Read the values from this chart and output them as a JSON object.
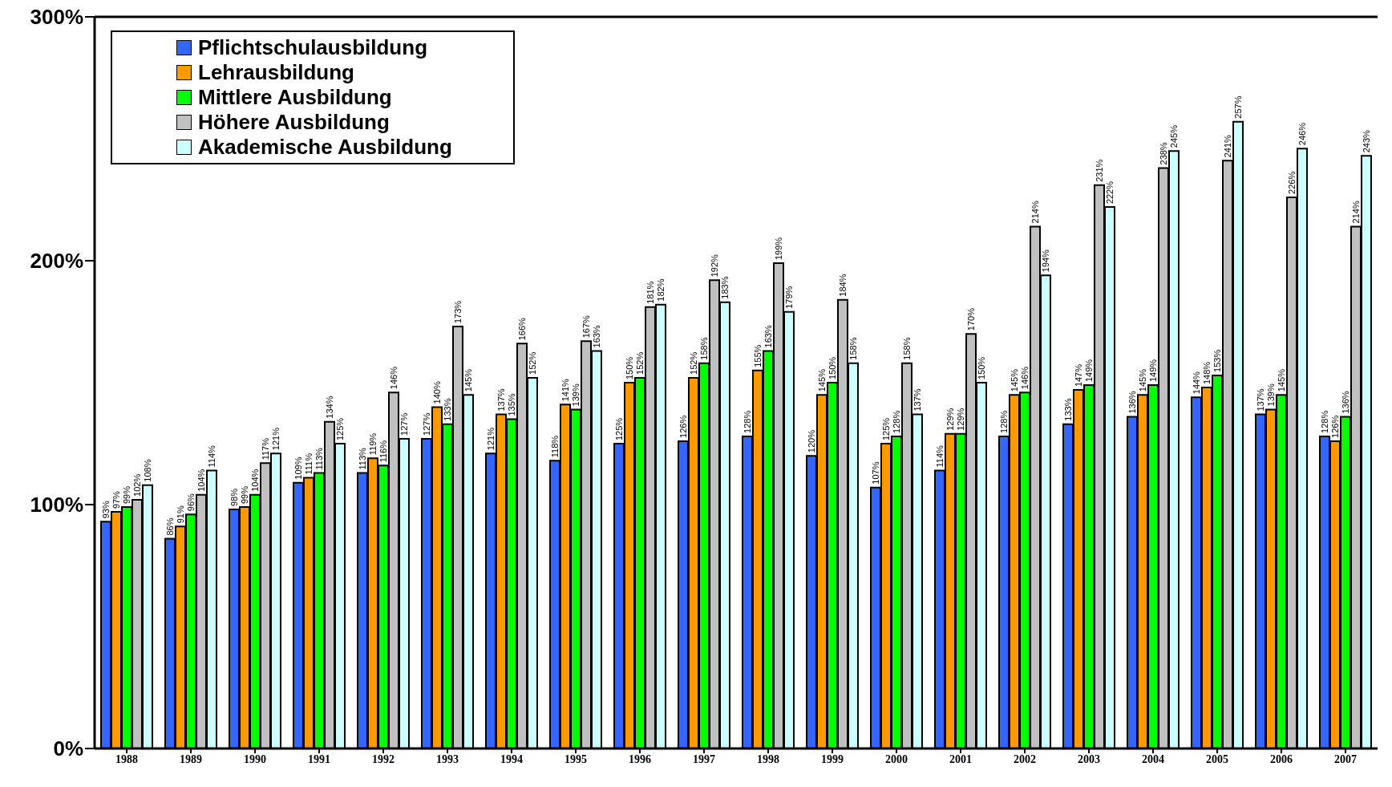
{
  "chart_data": {
    "type": "bar",
    "categories": [
      "1988",
      "1989",
      "1990",
      "1991",
      "1992",
      "1993",
      "1994",
      "1995",
      "1996",
      "1997",
      "1998",
      "1999",
      "2000",
      "2001",
      "2002",
      "2003",
      "2004",
      "2005",
      "2006",
      "2007"
    ],
    "series": [
      {
        "name": "Pflichtschulausbildung",
        "color": "#3366ff",
        "values": [
          93,
          86,
          98,
          109,
          113,
          127,
          121,
          118,
          125,
          126,
          128,
          120,
          107,
          114,
          128,
          133,
          136,
          144,
          137,
          128
        ],
        "value_labels": [
          "93%",
          "86%",
          "98%",
          "109%",
          "113%",
          "127%",
          "121%",
          "118%",
          "125%",
          "126%",
          "128%",
          "120%",
          "107%",
          "114%",
          "128%",
          "133%",
          "136%",
          "144%",
          "137%",
          "128%"
        ]
      },
      {
        "name": "Lehrausbildung",
        "color": "#ff9900",
        "values": [
          97,
          91,
          99,
          111,
          119,
          140,
          137,
          141,
          150,
          152,
          155,
          145,
          125,
          129,
          145,
          147,
          145,
          148,
          139,
          126
        ],
        "value_labels": [
          "97%",
          "91%",
          "99%",
          "111%",
          "119%",
          "140%",
          "137%",
          "141%",
          "150%",
          "152%",
          "155%",
          "145%",
          "125%",
          "129%",
          "145%",
          "147%",
          "145%",
          "148%",
          "139%",
          "126%"
        ]
      },
      {
        "name": "Mittlere Ausbildung",
        "color": "#00ff00",
        "values": [
          99,
          96,
          104,
          113,
          116,
          133,
          135,
          139,
          152,
          158,
          163,
          150,
          128,
          129,
          146,
          149,
          149,
          153,
          145,
          136
        ],
        "value_labels": [
          "99%",
          "96%",
          "104%",
          "113%",
          "116%",
          "133%",
          "135%",
          "139%",
          "152%",
          "158%",
          "163%",
          "150%",
          "128%",
          "129%",
          "146%",
          "149%",
          "149%",
          "153%",
          "145%",
          "136%"
        ]
      },
      {
        "name": "Höhere Ausbildung",
        "color": "#c0c0c0",
        "values": [
          102,
          104,
          117,
          134,
          146,
          173,
          166,
          167,
          181,
          192,
          199,
          184,
          158,
          170,
          214,
          231,
          238,
          241,
          226,
          214
        ],
        "value_labels": [
          "102%",
          "104%",
          "117%",
          "134%",
          "146%",
          "173%",
          "166%",
          "167%",
          "181%",
          "192%",
          "199%",
          "184%",
          "158%",
          "170%",
          "214%",
          "231%",
          "238%",
          "241%",
          "226%",
          "214%"
        ]
      },
      {
        "name": "Akademische Ausbildung",
        "color": "#ccffff",
        "values": [
          108,
          114,
          121,
          125,
          127,
          145,
          152,
          163,
          182,
          183,
          179,
          158,
          137,
          150,
          194,
          222,
          245,
          257,
          246,
          243
        ],
        "value_labels": [
          "108%",
          "114%",
          "121%",
          "125%",
          "127%",
          "145%",
          "152%",
          "163%",
          "182%",
          "183%",
          "179%",
          "158%",
          "137%",
          "150%",
          "194%",
          "222%",
          "245%",
          "257%",
          "246%",
          "243%"
        ]
      }
    ],
    "ylim": [
      0,
      300
    ],
    "yticks": [
      {
        "value": 0,
        "label": "0%"
      },
      {
        "value": 100,
        "label": "100%"
      },
      {
        "value": 200,
        "label": "200%"
      },
      {
        "value": 300,
        "label": "300%"
      }
    ],
    "legend": "top left"
  }
}
